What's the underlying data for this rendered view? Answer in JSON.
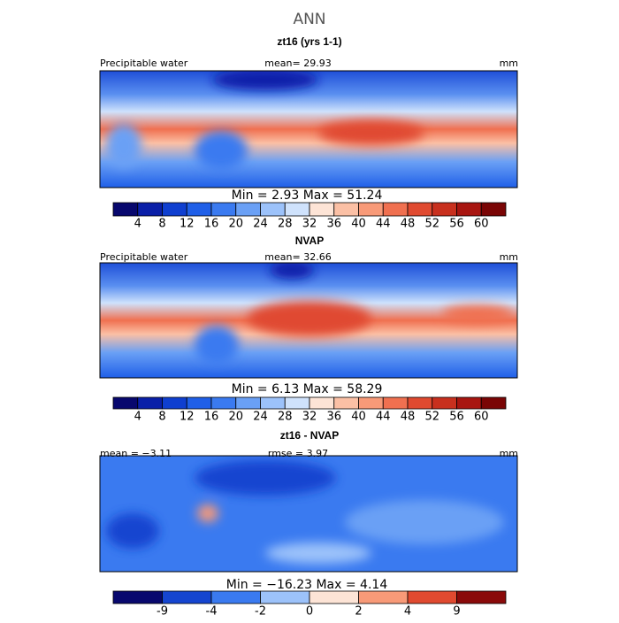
{
  "title": "ANN",
  "panels": [
    {
      "title": "zt16 (yrs 1-1)",
      "left": "Precipitable water",
      "center": "mean=  29.93",
      "right": "mm",
      "stats": "Min =    2.93  Max =   51.24",
      "colorbar": {
        "colors": [
          "#08086e",
          "#0a1fa8",
          "#0f3fd0",
          "#1f5fe8",
          "#3a7af0",
          "#6aa0f5",
          "#9cc2fa",
          "#cfe2fc",
          "#fde4d6",
          "#fbc0a5",
          "#f89a78",
          "#f07050",
          "#e04a30",
          "#c8301e",
          "#a81510",
          "#7a0505"
        ],
        "labels": [
          4,
          8,
          12,
          16,
          20,
          24,
          28,
          32,
          36,
          40,
          44,
          48,
          52,
          56,
          60
        ]
      }
    },
    {
      "title": "NVAP",
      "left": "Precipitable water",
      "center": "mean=  32.66",
      "right": "mm",
      "stats": "Min =    6.13  Max =   58.29",
      "colorbar": {
        "colors": [
          "#08086e",
          "#0a1fa8",
          "#0f3fd0",
          "#1f5fe8",
          "#3a7af0",
          "#6aa0f5",
          "#9cc2fa",
          "#cfe2fc",
          "#fde4d6",
          "#fbc0a5",
          "#f89a78",
          "#f07050",
          "#e04a30",
          "#c8301e",
          "#a81510",
          "#7a0505"
        ],
        "labels": [
          4,
          8,
          12,
          16,
          20,
          24,
          28,
          32,
          36,
          40,
          44,
          48,
          52,
          56,
          60
        ]
      }
    },
    {
      "title": "zt16 - NVAP",
      "left": "mean =  −3.11",
      "center": "rmse =    3.97",
      "right": "mm",
      "stats": "Min = −16.23  Max =    4.14",
      "colorbar": {
        "colors": [
          "#08086e",
          "#1545d0",
          "#3a7af0",
          "#9cc2fa",
          "#fde4d6",
          "#f89a78",
          "#e04a30",
          "#8a0a0a"
        ],
        "labels": [
          -9,
          -4,
          -2,
          0,
          2,
          4,
          9
        ]
      }
    }
  ]
}
